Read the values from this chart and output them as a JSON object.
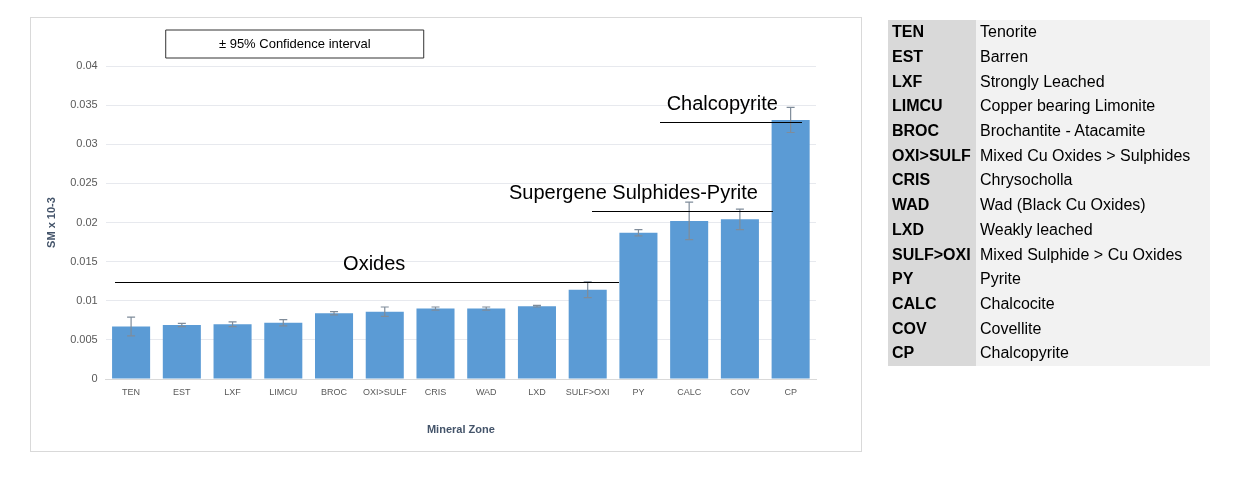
{
  "chart_data": [
    {
      "type": "bar",
      "xlabel": "Mineral Zone",
      "ylabel": "SM x 10-3",
      "categories": [
        "TEN",
        "EST",
        "LXF",
        "LIMCU",
        "BROC",
        "OXI>SULF",
        "CRIS",
        "WAD",
        "LXD",
        "SULF>OXI",
        "PY",
        "CALC",
        "COV",
        "CP"
      ],
      "values": [
        0.0067,
        0.0069,
        0.007,
        0.0072,
        0.0084,
        0.0086,
        0.009,
        0.009,
        0.0093,
        0.0114,
        0.0187,
        0.0202,
        0.0204,
        0.0331
      ],
      "errors": [
        0.0012,
        0.0002,
        0.0003,
        0.0004,
        0.0002,
        0.0006,
        0.0002,
        0.0002,
        0.0001,
        0.001,
        0.0004,
        0.0024,
        0.0013,
        0.0016
      ],
      "color": "#5b9bd5",
      "ylim": [
        0,
        0.04
      ],
      "yticks": [
        0,
        0.005,
        0.01,
        0.015,
        0.02,
        0.025,
        0.03,
        0.035,
        0.04
      ],
      "grid": "y",
      "legend": false,
      "annotations": [
        "± 95% Confidence interval",
        "Oxides",
        "Supergene Sulphides-Pyrite",
        "Chalcopyrite"
      ]
    },
    {
      "type": "other",
      "annotations": [
        "TEN",
        "Tenorite",
        "EST",
        "Barren",
        "LXF",
        "Strongly Leached",
        "LIMCU",
        "Copper bearing Limonite",
        "BROC",
        "Brochantite - Atacamite",
        "OXI>SULF",
        "Mixed Cu Oxides > Sulphides",
        "CRIS",
        "Chrysocholla",
        "WAD",
        "Wad (Black Cu Oxides)",
        "LXD",
        "Weakly leached",
        "SULF>OXI",
        "Mixed Sulphide > Cu Oxides",
        "PY",
        "Pyrite",
        "CALC",
        "Chalcocite",
        "COV",
        "Covellite",
        "CP",
        "Chalcopyrite"
      ]
    }
  ]
}
